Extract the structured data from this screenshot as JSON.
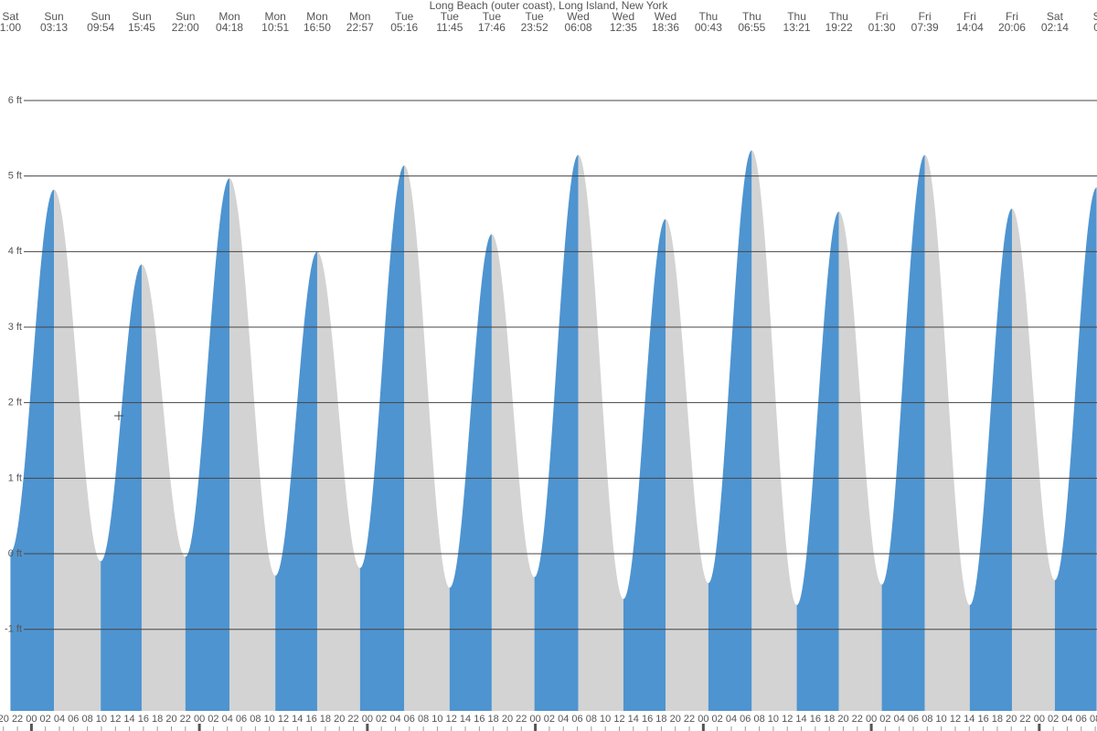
{
  "chart_data": {
    "type": "tide",
    "title": "Long Beach (outer coast), Long Island, New York",
    "x": [
      21,
      27.22,
      33.9,
      39.75,
      46,
      52.3,
      58.85,
      64.83,
      70.95,
      77.27,
      83.75,
      89.77,
      95.87,
      102.13,
      108.58,
      114.6,
      120.72,
      126.92,
      133.35,
      139.37,
      145.5,
      151.65,
      158.07,
      164.1,
      170.23,
      176.2
    ],
    "days": [
      "Sat",
      "Sun",
      "Sun",
      "Sun",
      "Sun",
      "Mon",
      "Mon",
      "Mon",
      "Mon",
      "Tue",
      "Tue",
      "Tue",
      "Tue",
      "Wed",
      "Wed",
      "Wed",
      "Thu",
      "Thu",
      "Thu",
      "Thu",
      "Fri",
      "Fri",
      "Fri",
      "Fri",
      "Sat",
      "S"
    ],
    "times": [
      "1:00",
      "03:13",
      "09:54",
      "15:45",
      "22:00",
      "04:18",
      "10:51",
      "16:50",
      "22:57",
      "05:16",
      "11:45",
      "17:46",
      "23:52",
      "06:08",
      "12:35",
      "18:36",
      "00:43",
      "06:55",
      "13:21",
      "19:22",
      "01:30",
      "07:39",
      "14:04",
      "20:06",
      "02:14",
      "0"
    ],
    "values": [
      0.02,
      4.82,
      -0.1,
      3.83,
      -0.04,
      4.97,
      -0.29,
      4.0,
      -0.19,
      5.14,
      -0.45,
      4.23,
      -0.31,
      5.28,
      -0.6,
      4.43,
      -0.39,
      5.34,
      -0.68,
      4.53,
      -0.41,
      5.28,
      -0.68,
      4.57,
      -0.35,
      4.85
    ],
    "rising_color": "#4e94d0",
    "falling_color": "#d3d3d3",
    "xlim": [
      19.51,
      176.25
    ],
    "ylim": [
      -2.08,
      7.33
    ],
    "yticks": [
      {
        "value": -1,
        "label": "-1 ft"
      },
      {
        "value": 0,
        "label": "0 ft"
      },
      {
        "value": 1,
        "label": "1 ft"
      },
      {
        "value": 2,
        "label": "2 ft"
      },
      {
        "value": 3,
        "label": "3 ft"
      },
      {
        "value": 4,
        "label": "4 ft"
      },
      {
        "value": 5,
        "label": "5 ft"
      },
      {
        "value": 6,
        "label": "6 ft"
      }
    ],
    "grid": true,
    "xticks": [
      20,
      22,
      {
        "value": 24,
        "label": "00"
      },
      {
        "value": 26,
        "label": "02"
      },
      {
        "value": 28,
        "label": "04"
      },
      {
        "value": 30,
        "label": "06"
      },
      {
        "value": 32,
        "label": "08"
      },
      {
        "value": 34,
        "label": "10"
      },
      {
        "value": 36,
        "label": "12"
      },
      {
        "value": 38,
        "label": "14"
      },
      {
        "value": 40,
        "label": "16"
      },
      {
        "value": 42,
        "label": "18"
      },
      {
        "value": 44,
        "label": "20"
      },
      {
        "value": 46,
        "label": "22"
      },
      {
        "value": 48,
        "label": "00"
      },
      {
        "value": 50,
        "label": "02"
      },
      {
        "value": 52,
        "label": "04"
      },
      {
        "value": 54,
        "label": "06"
      },
      {
        "value": 56,
        "label": "08"
      },
      {
        "value": 58,
        "label": "10"
      },
      {
        "value": 60,
        "label": "12"
      },
      {
        "value": 62,
        "label": "14"
      },
      {
        "value": 64,
        "label": "16"
      },
      {
        "value": 66,
        "label": "18"
      },
      {
        "value": 68,
        "label": "20"
      },
      {
        "value": 70,
        "label": "22"
      },
      {
        "value": 72,
        "label": "00"
      },
      {
        "value": 74,
        "label": "02"
      },
      {
        "value": 76,
        "label": "04"
      },
      {
        "value": 78,
        "label": "06"
      },
      {
        "value": 80,
        "label": "08"
      },
      {
        "value": 82,
        "label": "10"
      },
      {
        "value": 84,
        "label": "12"
      },
      {
        "value": 86,
        "label": "14"
      },
      {
        "value": 88,
        "label": "16"
      },
      {
        "value": 90,
        "label": "18"
      },
      {
        "value": 92,
        "label": "20"
      },
      {
        "value": 94,
        "label": "22"
      },
      {
        "value": 96,
        "label": "00"
      },
      {
        "value": 98,
        "label": "02"
      },
      {
        "value": 100,
        "label": "04"
      },
      {
        "value": 102,
        "label": "06"
      },
      {
        "value": 104,
        "label": "08"
      },
      {
        "value": 106,
        "label": "10"
      },
      {
        "value": 108,
        "label": "12"
      },
      {
        "value": 110,
        "label": "14"
      },
      {
        "value": 112,
        "label": "16"
      },
      {
        "value": 114,
        "label": "18"
      },
      {
        "value": 116,
        "label": "20"
      },
      {
        "value": 118,
        "label": "22"
      },
      {
        "value": 120,
        "label": "00"
      },
      {
        "value": 122,
        "label": "02"
      },
      {
        "value": 124,
        "label": "04"
      },
      {
        "value": 126,
        "label": "06"
      },
      {
        "value": 128,
        "label": "08"
      },
      {
        "value": 130,
        "label": "10"
      },
      {
        "value": 132,
        "label": "12"
      },
      {
        "value": 134,
        "label": "14"
      },
      {
        "value": 136,
        "label": "16"
      },
      {
        "value": 138,
        "label": "18"
      },
      {
        "value": 140,
        "label": "20"
      },
      {
        "value": 142,
        "label": "22"
      },
      {
        "value": 144,
        "label": "00"
      },
      {
        "value": 146,
        "label": "02"
      },
      {
        "value": 148,
        "label": "04"
      },
      {
        "value": 150,
        "label": "06"
      },
      {
        "value": 152,
        "label": "08"
      },
      {
        "value": 154,
        "label": "10"
      },
      {
        "value": 156,
        "label": "12"
      },
      {
        "value": 158,
        "label": "14"
      },
      {
        "value": 160,
        "label": "16"
      },
      {
        "value": 162,
        "label": "18"
      },
      {
        "value": 164,
        "label": "20"
      },
      {
        "value": 166,
        "label": "22"
      },
      {
        "value": 168,
        "label": "00"
      },
      {
        "value": 170,
        "label": "02"
      },
      {
        "value": 172,
        "label": "04"
      },
      {
        "value": 174,
        "label": "06"
      },
      {
        "value": 176,
        "label": "08"
      }
    ]
  }
}
